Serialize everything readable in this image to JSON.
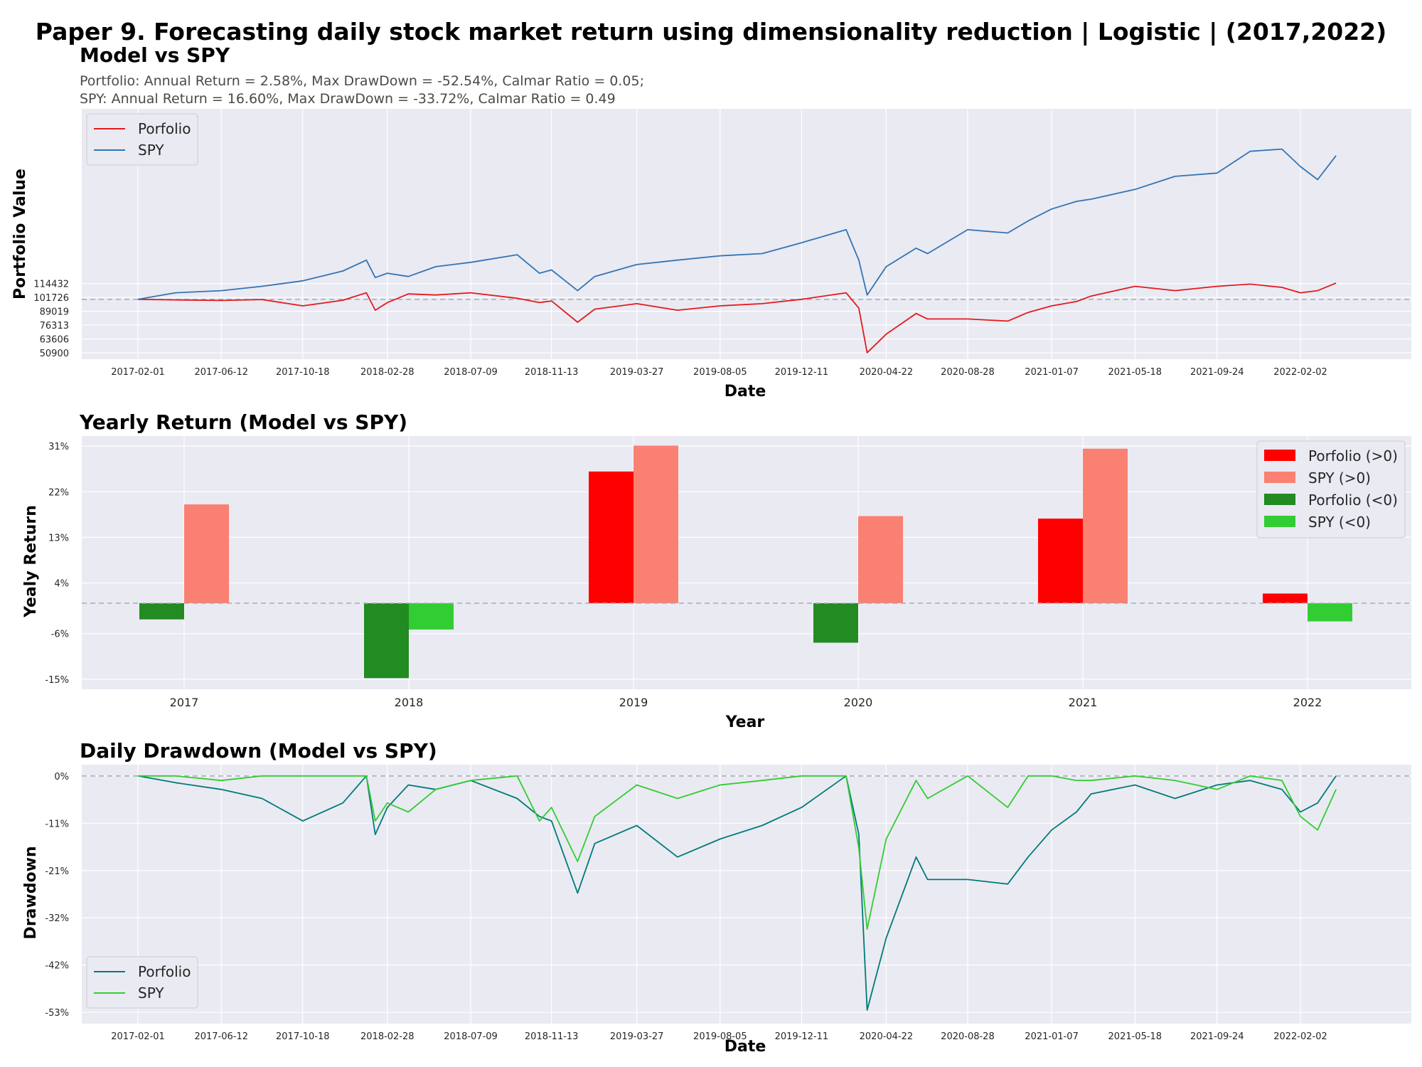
{
  "suptitle": "Paper 9. Forecasting daily stock market return using dimensionality reduction | Logistic | (2017,2022)",
  "colors": {
    "axes_bg": "#eaeaf2",
    "grid": "#ffffff",
    "baseline": "#a9a9b3",
    "portfolio_value": "#e31a1c",
    "spy_value": "#3274b4",
    "portfolio_pos": "#ff0000",
    "spy_pos": "#fa8072",
    "portfolio_neg": "#228b22",
    "spy_neg": "#32cd32",
    "portfolio_dd": "#007a7a",
    "spy_dd": "#32cd32"
  },
  "chart_data": [
    {
      "type": "line",
      "title": "Model vs SPY",
      "subtitle_line1": "Portfolio: Annual Return = 2.58%, Max DrawDown = -52.54%, Calmar Ratio = 0.05;",
      "subtitle_line2": "SPY: Annual Return = 16.60%, Max DrawDown = -33.72%, Calmar Ratio = 0.49",
      "xlabel": "Date",
      "ylabel": "Portfolio Value",
      "x_ticks": [
        "2017-02-01",
        "2017-06-12",
        "2017-10-18",
        "2018-02-28",
        "2018-07-09",
        "2018-11-13",
        "2019-03-27",
        "2019-08-05",
        "2019-12-11",
        "2020-04-22",
        "2020-08-28",
        "2021-01-07",
        "2021-05-18",
        "2021-09-24",
        "2022-02-02"
      ],
      "y_ticks": [
        "114432",
        "101726",
        "89019",
        "76313",
        "63606",
        "50900"
      ],
      "y_tick_values": [
        114432,
        101726,
        89019,
        76313,
        63606,
        50900
      ],
      "ylim": [
        45000,
        275000
      ],
      "baseline": 100000,
      "legend_position": "upper-left",
      "series": [
        {
          "name": "Porfolio",
          "x": [
            "2017-02-01",
            "2017-04-01",
            "2017-06-12",
            "2017-08-15",
            "2017-10-18",
            "2017-12-20",
            "2018-01-26",
            "2018-02-09",
            "2018-02-28",
            "2018-04-02",
            "2018-05-15",
            "2018-07-09",
            "2018-09-20",
            "2018-10-25",
            "2018-11-13",
            "2018-12-24",
            "2019-01-20",
            "2019-03-27",
            "2019-05-30",
            "2019-08-05",
            "2019-10-10",
            "2019-12-11",
            "2020-02-19",
            "2020-03-10",
            "2020-03-23",
            "2020-04-22",
            "2020-06-08",
            "2020-06-26",
            "2020-08-28",
            "2020-10-30",
            "2020-12-01",
            "2021-01-07",
            "2021-02-15",
            "2021-03-10",
            "2021-05-18",
            "2021-07-20",
            "2021-09-24",
            "2021-11-15",
            "2022-01-04",
            "2022-02-02",
            "2022-03-01",
            "2022-03-30"
          ],
          "values": [
            100000,
            99500,
            99000,
            99800,
            94000,
            99200,
            106000,
            90000,
            97000,
            105000,
            104000,
            106000,
            101000,
            97000,
            98500,
            79000,
            91000,
            96000,
            90000,
            94000,
            96000,
            100000,
            106000,
            92000,
            51000,
            68000,
            87000,
            82000,
            82000,
            80000,
            88000,
            94000,
            98000,
            103000,
            112000,
            108000,
            112000,
            114000,
            111000,
            106000,
            108000,
            115000
          ]
        },
        {
          "name": "SPY",
          "x": [
            "2017-02-01",
            "2017-04-01",
            "2017-06-12",
            "2017-08-15",
            "2017-10-18",
            "2017-12-20",
            "2018-01-26",
            "2018-02-09",
            "2018-02-28",
            "2018-04-02",
            "2018-05-15",
            "2018-07-09",
            "2018-09-20",
            "2018-10-25",
            "2018-11-13",
            "2018-12-24",
            "2019-01-20",
            "2019-03-27",
            "2019-05-30",
            "2019-08-05",
            "2019-10-10",
            "2019-12-11",
            "2020-02-19",
            "2020-03-10",
            "2020-03-23",
            "2020-04-22",
            "2020-06-08",
            "2020-06-26",
            "2020-08-28",
            "2020-10-30",
            "2020-12-01",
            "2021-01-07",
            "2021-02-15",
            "2021-03-10",
            "2021-05-18",
            "2021-07-20",
            "2021-09-24",
            "2021-11-15",
            "2022-01-04",
            "2022-02-02",
            "2022-03-01",
            "2022-03-30"
          ],
          "values": [
            100000,
            106000,
            108000,
            112000,
            117000,
            126000,
            136000,
            120000,
            124000,
            121000,
            130000,
            134000,
            141000,
            124000,
            127000,
            108000,
            121000,
            132000,
            136000,
            140000,
            142000,
            152000,
            164000,
            136000,
            104000,
            130000,
            147000,
            142000,
            164000,
            161000,
            172000,
            183000,
            190000,
            192000,
            201000,
            213000,
            216000,
            236000,
            238000,
            222000,
            210000,
            232000
          ]
        }
      ]
    },
    {
      "type": "bar",
      "title": "Yearly Return (Model vs SPY)",
      "xlabel": "Year",
      "ylabel": "Yealy Return",
      "categories": [
        "2017",
        "2018",
        "2019",
        "2020",
        "2021",
        "2022"
      ],
      "y_ticks": [
        "31%",
        "22%",
        "13%",
        "4%",
        "-6%",
        "-15%"
      ],
      "y_tick_values": [
        31,
        22,
        13,
        4,
        -6,
        -15
      ],
      "ylim": [
        -17,
        33
      ],
      "baseline": 0,
      "legend_position": "upper-right",
      "legend": [
        "Porfolio (>0)",
        "SPY (>0)",
        "Porfolio (<0)",
        "SPY (<0)"
      ],
      "series": [
        {
          "name": "Porfolio",
          "values": [
            -3.2,
            -14.8,
            26.0,
            -7.8,
            16.7,
            1.9
          ]
        },
        {
          "name": "SPY",
          "values": [
            19.5,
            -5.2,
            31.1,
            17.2,
            30.5,
            -3.6
          ]
        }
      ]
    },
    {
      "type": "line",
      "title": "Daily Drawdown (Model vs SPY)",
      "xlabel": "Date",
      "ylabel": "Drawdown",
      "x_ticks": [
        "2017-02-01",
        "2017-06-12",
        "2017-10-18",
        "2018-02-28",
        "2018-07-09",
        "2018-11-13",
        "2019-03-27",
        "2019-08-05",
        "2019-12-11",
        "2020-04-22",
        "2020-08-28",
        "2021-01-07",
        "2021-05-18",
        "2021-09-24",
        "2022-02-02"
      ],
      "y_ticks": [
        "0%",
        "-11%",
        "-21%",
        "-32%",
        "-42%",
        "-53%"
      ],
      "y_tick_values": [
        0,
        -10.5,
        -21,
        -31.5,
        -42,
        -52.5
      ],
      "ylim": [
        -55,
        2.5
      ],
      "baseline": 0,
      "legend_position": "lower-left",
      "series": [
        {
          "name": "Porfolio",
          "x": [
            "2017-02-01",
            "2017-04-01",
            "2017-06-12",
            "2017-08-15",
            "2017-10-18",
            "2017-12-20",
            "2018-01-26",
            "2018-02-09",
            "2018-02-28",
            "2018-04-02",
            "2018-05-15",
            "2018-07-09",
            "2018-09-20",
            "2018-10-25",
            "2018-11-13",
            "2018-12-24",
            "2019-01-20",
            "2019-03-27",
            "2019-05-30",
            "2019-08-05",
            "2019-10-10",
            "2019-12-11",
            "2020-02-19",
            "2020-03-10",
            "2020-03-23",
            "2020-04-22",
            "2020-06-08",
            "2020-06-26",
            "2020-08-28",
            "2020-10-30",
            "2020-12-01",
            "2021-01-07",
            "2021-02-15",
            "2021-03-10",
            "2021-05-18",
            "2021-07-20",
            "2021-09-24",
            "2021-11-15",
            "2022-01-04",
            "2022-02-02",
            "2022-03-01",
            "2022-03-30"
          ],
          "values": [
            0,
            -1.5,
            -3,
            -5,
            -10,
            -6,
            0,
            -13,
            -7,
            -2,
            -3,
            -1,
            -5,
            -9,
            -10,
            -26,
            -15,
            -11,
            -18,
            -14,
            -11,
            -7,
            0,
            -13,
            -52,
            -36,
            -18,
            -23,
            -23,
            -24,
            -18,
            -12,
            -8,
            -4,
            -2,
            -5,
            -2,
            -1,
            -3,
            -8,
            -6,
            0
          ]
        },
        {
          "name": "SPY",
          "x": [
            "2017-02-01",
            "2017-04-01",
            "2017-06-12",
            "2017-08-15",
            "2017-10-18",
            "2017-12-20",
            "2018-01-26",
            "2018-02-09",
            "2018-02-28",
            "2018-04-02",
            "2018-05-15",
            "2018-07-09",
            "2018-09-20",
            "2018-10-25",
            "2018-11-13",
            "2018-12-24",
            "2019-01-20",
            "2019-03-27",
            "2019-05-30",
            "2019-08-05",
            "2019-10-10",
            "2019-12-11",
            "2020-02-19",
            "2020-03-10",
            "2020-03-23",
            "2020-04-22",
            "2020-06-08",
            "2020-06-26",
            "2020-08-28",
            "2020-10-30",
            "2020-12-01",
            "2021-01-07",
            "2021-02-15",
            "2021-03-10",
            "2021-05-18",
            "2021-07-20",
            "2021-09-24",
            "2021-11-15",
            "2022-01-04",
            "2022-02-02",
            "2022-03-01",
            "2022-03-30"
          ],
          "values": [
            0,
            0,
            -1,
            0,
            0,
            0,
            0,
            -10,
            -6,
            -8,
            -3,
            -1,
            0,
            -10,
            -7,
            -19,
            -9,
            -2,
            -5,
            -2,
            -1,
            0,
            0,
            -16,
            -34,
            -14,
            -1,
            -5,
            0,
            -7,
            0,
            0,
            -1,
            -1,
            0,
            -1,
            -3,
            0,
            -1,
            -9,
            -12,
            -3
          ]
        }
      ]
    }
  ]
}
